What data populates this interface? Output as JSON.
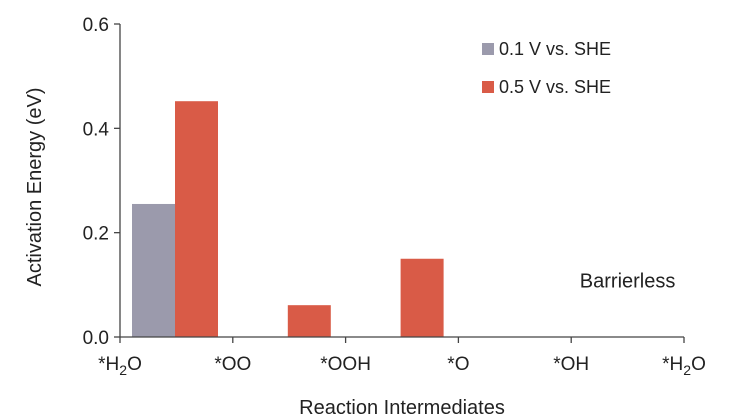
{
  "chart_data": {
    "type": "bar",
    "title": "",
    "xlabel": "Reaction Intermediates",
    "ylabel": "Activation Energy (eV)",
    "ylim": [
      0,
      0.6
    ],
    "yticks": [
      "0.0",
      "0.2",
      "0.4",
      "0.6"
    ],
    "xtick_labels": [
      {
        "main": "*H",
        "sub": "2",
        "tail": "O"
      },
      {
        "main": "*OO",
        "sub": "",
        "tail": ""
      },
      {
        "main": "*OOH",
        "sub": "",
        "tail": ""
      },
      {
        "main": "*O",
        "sub": "",
        "tail": ""
      },
      {
        "main": "*OH",
        "sub": "",
        "tail": ""
      },
      {
        "main": "*H",
        "sub": "2",
        "tail": "O"
      }
    ],
    "steps": [
      "*H2O → *OO",
      "*OO → *OOH",
      "*OOH → *O",
      "*O → *OH",
      "*OH → *H2O"
    ],
    "series": [
      {
        "name": "0.1 V vs. SHE",
        "color": "#9b9aac",
        "values": [
          0.255,
          0,
          0,
          0,
          0
        ]
      },
      {
        "name": "0.5 V vs. SHE",
        "color": "#d95b47",
        "values": [
          0.452,
          0.061,
          0.15,
          0,
          0
        ]
      }
    ],
    "legend_position": "top-right",
    "annotations": [
      {
        "text": "Barrierless",
        "step_index": 4,
        "y": 0.095
      }
    ],
    "grid": false
  }
}
